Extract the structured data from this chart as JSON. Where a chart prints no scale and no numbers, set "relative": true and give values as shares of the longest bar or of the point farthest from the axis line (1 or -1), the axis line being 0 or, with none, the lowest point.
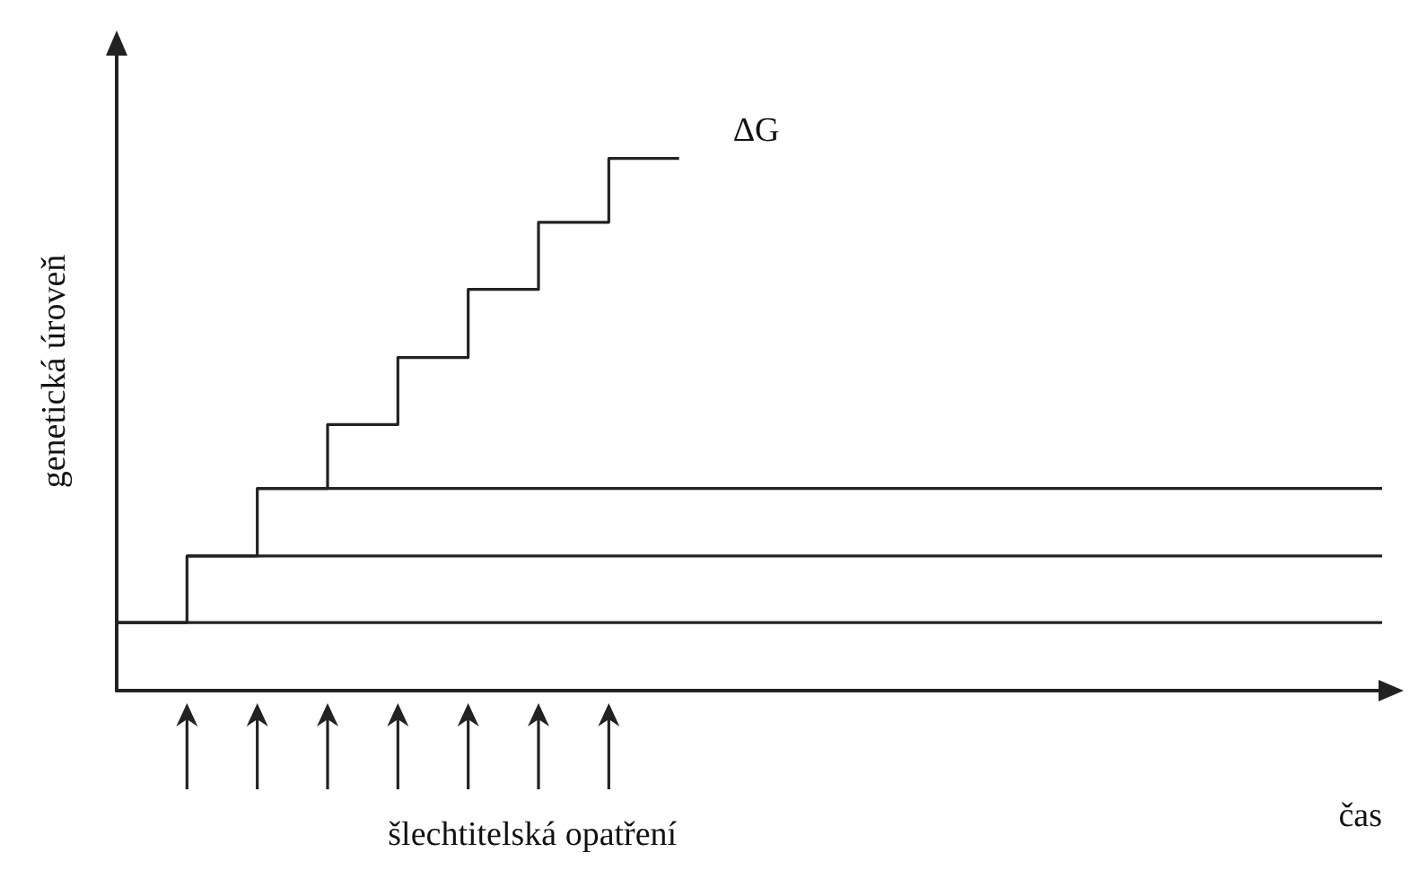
{
  "chart_data": {
    "type": "step",
    "relative": true,
    "grid": false,
    "marker": "none",
    "line_style": "solid",
    "xlabel": "čas",
    "ylabel": "genetická úroveň",
    "annotations": [
      "ΔG",
      "šlechtitelská opatření"
    ],
    "categories": [
      null,
      null,
      null,
      null,
      null,
      null,
      null,
      null,
      null,
      null,
      null,
      null,
      null,
      null,
      null,
      null,
      null,
      null,
      null
    ],
    "series": [
      {
        "type": "line",
        "color": "#222222",
        "values": [
          0.128,
          0.128,
          0.128,
          0.128,
          0.128,
          0.128,
          0.128,
          0.128,
          0.128,
          0.128,
          0.128,
          0.128,
          0.128,
          0.128,
          0.128,
          0.128,
          0.128,
          0.128,
          0.128
        ]
      },
      {
        "type": "line",
        "color": "#222222",
        "values": [
          null,
          0.253,
          0.253,
          0.253,
          0.253,
          0.253,
          0.253,
          0.253,
          0.253,
          0.253,
          0.253,
          0.253,
          0.253,
          0.253,
          0.253,
          0.253,
          0.253,
          0.253,
          0.253
        ]
      },
      {
        "type": "line",
        "color": "#222222",
        "values": [
          null,
          null,
          0.38,
          0.38,
          0.38,
          0.38,
          0.38,
          0.38,
          0.38,
          0.38,
          0.38,
          0.38,
          0.38,
          0.38,
          0.38,
          0.38,
          0.38,
          0.38,
          0.38
        ]
      },
      {
        "color": "#222222",
        "values": [
          0.128,
          0.128,
          0.253,
          0.38,
          0.5,
          0.626,
          0.754,
          0.88,
          1,
          null,
          null,
          null,
          null,
          null,
          null,
          null,
          null,
          null,
          null
        ]
      }
    ]
  }
}
